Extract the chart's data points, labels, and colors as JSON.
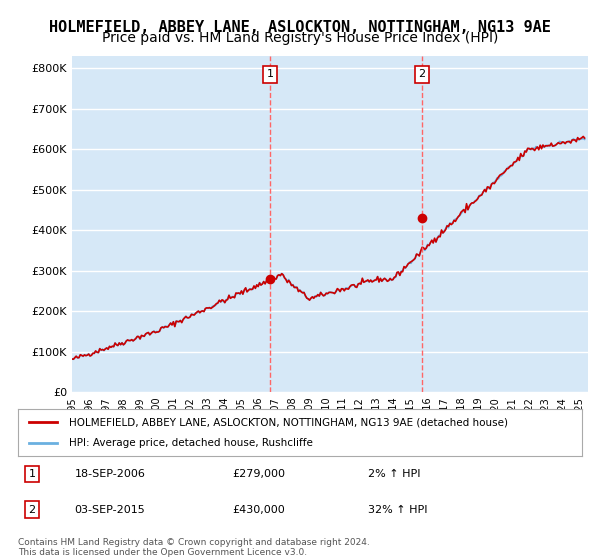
{
  "title": "HOLMEFIELD, ABBEY LANE, ASLOCKTON, NOTTINGHAM, NG13 9AE",
  "subtitle": "Price paid vs. HM Land Registry's House Price Index (HPI)",
  "ylabel_ticks": [
    "£0",
    "£100K",
    "£200K",
    "£300K",
    "£400K",
    "£500K",
    "£600K",
    "£700K",
    "£800K"
  ],
  "ytick_values": [
    0,
    100000,
    200000,
    300000,
    400000,
    500000,
    600000,
    700000,
    800000
  ],
  "ylim": [
    0,
    830000
  ],
  "xlim_start": 1995.0,
  "xlim_end": 2025.5,
  "background_color": "#d6e8f7",
  "plot_bg_color": "#d6e8f7",
  "outer_bg_color": "#ffffff",
  "grid_color": "#ffffff",
  "sale1_x": 2006.72,
  "sale1_y": 279000,
  "sale1_label": "1",
  "sale2_x": 2015.67,
  "sale2_y": 430000,
  "sale2_label": "2",
  "vline1_x": 2006.72,
  "vline2_x": 2015.67,
  "vline_color": "#ff6666",
  "legend_line1": "HOLMEFIELD, ABBEY LANE, ASLOCKTON, NOTTINGHAM, NG13 9AE (detached house)",
  "legend_line2": "HPI: Average price, detached house, Rushcliffe",
  "table_row1": [
    "1",
    "18-SEP-2006",
    "£279,000",
    "2% ↑ HPI"
  ],
  "table_row2": [
    "2",
    "03-SEP-2015",
    "£430,000",
    "32% ↑ HPI"
  ],
  "footer": "Contains HM Land Registry data © Crown copyright and database right 2024.\nThis data is licensed under the Open Government Licence v3.0.",
  "hpi_line_color": "#6ab0e0",
  "sale_line_color": "#cc0000",
  "sale_dot_color": "#cc0000",
  "title_fontsize": 11,
  "subtitle_fontsize": 10
}
